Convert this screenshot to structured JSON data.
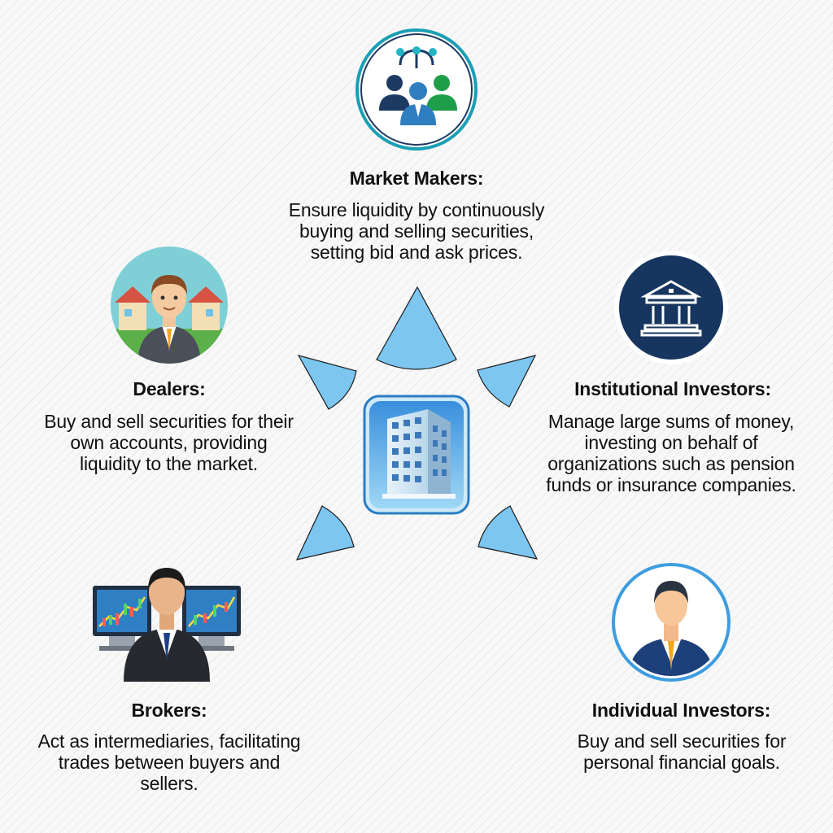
{
  "center": {
    "icon": "office-building-icon"
  },
  "nodes": {
    "market_makers": {
      "icon": "team-network-icon",
      "title": "Market Makers:",
      "lines": [
        "Ensure liquidity by continuously",
        "buying and selling securities,",
        "setting bid and ask prices."
      ]
    },
    "institutional": {
      "icon": "bank-building-icon",
      "title": "Institutional Investors:",
      "lines": [
        "Manage large sums of money,",
        "investing on behalf of",
        "organizations such as pension",
        "funds or insurance companies."
      ]
    },
    "individual": {
      "icon": "businessman-avatar-icon",
      "title": "Individual Investors:",
      "lines": [
        "Buy and sell securities for",
        "personal financial goals."
      ]
    },
    "brokers": {
      "icon": "trader-monitors-icon",
      "title": "Brokers:",
      "lines": [
        "Act as intermediaries, facilitating",
        "trades between buyers and",
        "sellers."
      ]
    },
    "dealers": {
      "icon": "dealer-houses-icon",
      "title": "Dealers:",
      "lines": [
        "Buy and sell securities for their",
        "own accounts, providing",
        "liquidity to the market."
      ]
    }
  },
  "colors": {
    "wedge_fill": "#7cc6f0",
    "wedge_stroke": "#1b1b1b",
    "navy": "#1d3a63",
    "teal": "#22b3c4",
    "accent_blue": "#3d9de0"
  }
}
